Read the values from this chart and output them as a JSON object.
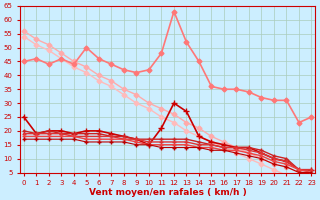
{
  "xlabel": "Vent moyen/en rafales ( km/h )",
  "background_color": "#cceeff",
  "grid_color": "#aaccbb",
  "x": [
    0,
    1,
    2,
    3,
    4,
    5,
    6,
    7,
    8,
    9,
    10,
    11,
    12,
    13,
    14,
    15,
    16,
    17,
    18,
    19,
    20,
    21,
    22,
    23
  ],
  "lines": [
    {
      "y": [
        54,
        51,
        49,
        46,
        43,
        41,
        38,
        36,
        33,
        30,
        28,
        25,
        23,
        20,
        18,
        16,
        14,
        12,
        10,
        8,
        6,
        4,
        3,
        2
      ],
      "color": "#ffbbbb",
      "lw": 1.0,
      "marker": "D",
      "ms": 2.5,
      "zorder": 2
    },
    {
      "y": [
        56,
        53,
        51,
        48,
        45,
        43,
        40,
        38,
        35,
        33,
        30,
        28,
        26,
        23,
        21,
        18,
        16,
        14,
        12,
        10,
        8,
        7,
        5,
        4
      ],
      "color": "#ffaaaa",
      "lw": 1.0,
      "marker": "D",
      "ms": 2.5,
      "zorder": 2
    },
    {
      "y": [
        45,
        46,
        44,
        46,
        44,
        50,
        46,
        44,
        42,
        41,
        42,
        48,
        63,
        52,
        45,
        36,
        35,
        35,
        34,
        32,
        31,
        31,
        23,
        25
      ],
      "color": "#ff7777",
      "lw": 1.2,
      "marker": "D",
      "ms": 2.5,
      "zorder": 3
    },
    {
      "y": [
        25,
        19,
        20,
        20,
        19,
        20,
        20,
        19,
        18,
        17,
        15,
        21,
        30,
        27,
        18,
        16,
        15,
        14,
        14,
        12,
        10,
        9,
        6,
        6
      ],
      "color": "#cc0000",
      "lw": 1.2,
      "marker": "+",
      "ms": 4,
      "zorder": 4
    },
    {
      "y": [
        20,
        19,
        20,
        19,
        19,
        19,
        19,
        18,
        18,
        17,
        17,
        17,
        17,
        17,
        16,
        15,
        14,
        14,
        14,
        13,
        11,
        10,
        6,
        6
      ],
      "color": "#cc2222",
      "lw": 1.0,
      "marker": "+",
      "ms": 3,
      "zorder": 4
    },
    {
      "y": [
        19,
        19,
        19,
        19,
        18,
        18,
        18,
        18,
        17,
        17,
        16,
        16,
        16,
        16,
        15,
        15,
        14,
        14,
        13,
        12,
        10,
        9,
        6,
        6
      ],
      "color": "#dd3333",
      "lw": 1.0,
      "marker": "+",
      "ms": 3,
      "zorder": 4
    },
    {
      "y": [
        18,
        18,
        18,
        18,
        18,
        17,
        17,
        17,
        17,
        16,
        15,
        15,
        15,
        15,
        14,
        14,
        13,
        13,
        12,
        11,
        9,
        8,
        6,
        5
      ],
      "color": "#ee4444",
      "lw": 1.0,
      "marker": "+",
      "ms": 3,
      "zorder": 4
    },
    {
      "y": [
        17,
        17,
        17,
        17,
        17,
        16,
        16,
        16,
        16,
        15,
        15,
        14,
        14,
        14,
        14,
        13,
        13,
        12,
        11,
        10,
        8,
        7,
        5,
        5
      ],
      "color": "#bb0000",
      "lw": 0.8,
      "marker": "+",
      "ms": 3,
      "zorder": 4
    }
  ],
  "ylim": [
    5,
    65
  ],
  "xlim": [
    -0.3,
    23.3
  ],
  "yticks": [
    5,
    10,
    15,
    20,
    25,
    30,
    35,
    40,
    45,
    50,
    55,
    60,
    65
  ],
  "xticks": [
    0,
    1,
    2,
    3,
    4,
    5,
    6,
    7,
    8,
    9,
    10,
    11,
    12,
    13,
    14,
    15,
    16,
    17,
    18,
    19,
    20,
    21,
    22,
    23
  ],
  "tick_label_color": "#cc0000",
  "xlabel_color": "#cc0000",
  "xlabel_fontsize": 6.5,
  "tick_fontsize": 5.0,
  "line_color_axis": "#cc0000"
}
